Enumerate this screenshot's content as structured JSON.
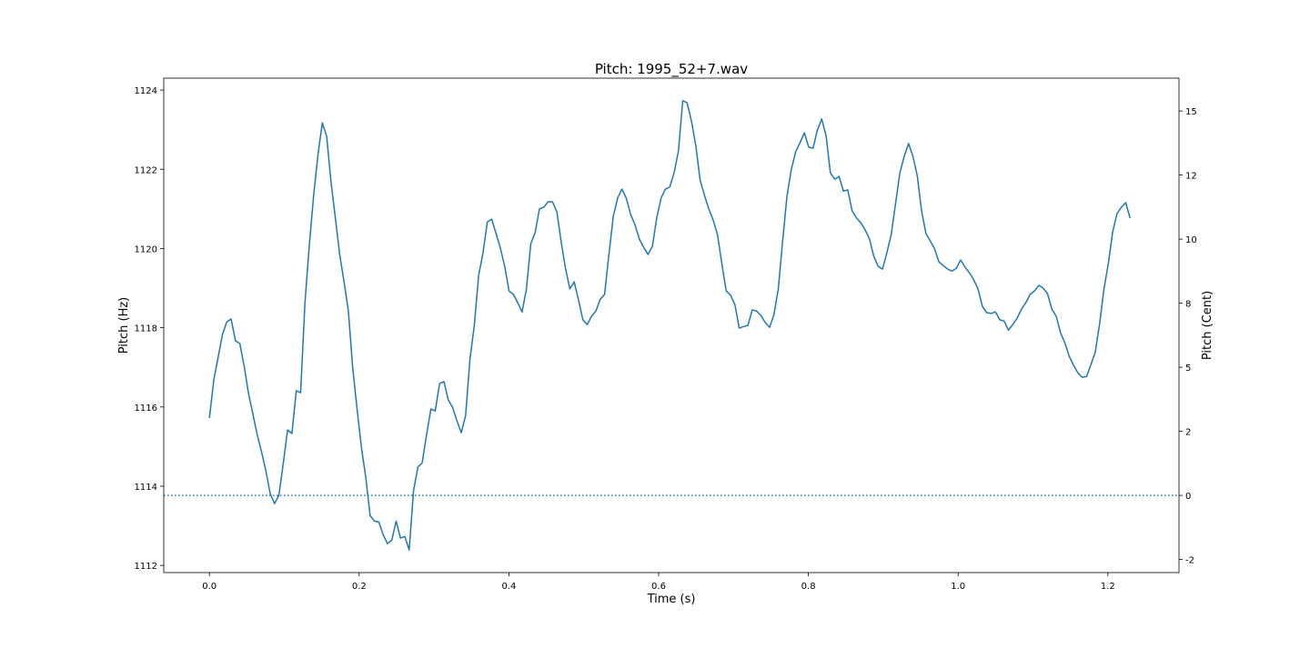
{
  "chart_data": {
    "type": "line",
    "title": "Pitch: 1995_52+7.wav",
    "x_label": "Time (s)",
    "y_label": "Pitch (Hz)",
    "y2_label": "Pitch (Cent)",
    "color": "#1f77b4",
    "xlim": [
      -0.061,
      1.295
    ],
    "ylim": [
      1111.82,
      1124.3
    ],
    "y2lim": [
      -3.01,
      16.28
    ],
    "xticks": [
      {
        "value": 0,
        "label": "0.0"
      },
      0.2,
      0.4,
      0.6,
      0.8,
      {
        "value": 1,
        "label": "1.0"
      },
      1.2
    ],
    "yticks": [
      1112,
      1114,
      1116,
      1118,
      1120,
      1122,
      1124
    ],
    "y2ticks": [
      {
        "value": -2.5,
        "label": "-2"
      },
      0,
      {
        "value": 2.5,
        "label": "2"
      },
      5,
      {
        "value": 7.5,
        "label": "8"
      },
      10,
      {
        "value": 12.5,
        "label": "12"
      },
      15
    ],
    "reference_line": {
      "axis": "y2",
      "value": 0,
      "style": "dotted"
    },
    "x": [
      0,
      0.0058,
      0.0116,
      0.0174,
      0.0232,
      0.029,
      0.0348,
      0.0406,
      0.0464,
      0.0522,
      0.058,
      0.0638,
      0.0696,
      0.0754,
      0.0812,
      0.087,
      0.0928,
      0.0986,
      0.1044,
      0.1102,
      0.116,
      0.1218,
      0.1276,
      0.1334,
      0.1392,
      0.145,
      0.1508,
      0.1566,
      0.1624,
      0.1682,
      0.174,
      0.1798,
      0.1856,
      0.1914,
      0.1972,
      0.203,
      0.2088,
      0.2146,
      0.2204,
      0.2262,
      0.232,
      0.2378,
      0.2436,
      0.2494,
      0.2552,
      0.261,
      0.2668,
      0.2726,
      0.2784,
      0.2842,
      0.29,
      0.2958,
      0.3016,
      0.3074,
      0.3132,
      0.319,
      0.3248,
      0.3306,
      0.3364,
      0.3422,
      0.348,
      0.3538,
      0.3596,
      0.3654,
      0.3712,
      0.377,
      0.3828,
      0.3886,
      0.3944,
      0.4002,
      0.406,
      0.4118,
      0.4176,
      0.4234,
      0.4292,
      0.435,
      0.4408,
      0.4466,
      0.4524,
      0.4582,
      0.464,
      0.4698,
      0.4756,
      0.4814,
      0.4872,
      0.493,
      0.4988,
      0.5046,
      0.5104,
      0.5162,
      0.522,
      0.5278,
      0.5336,
      0.5394,
      0.5452,
      0.551,
      0.5568,
      0.5626,
      0.5684,
      0.5742,
      0.58,
      0.5858,
      0.5916,
      0.5974,
      0.6032,
      0.609,
      0.6148,
      0.6206,
      0.6264,
      0.6322,
      0.638,
      0.6438,
      0.6496,
      0.6554,
      0.6612,
      0.667,
      0.6728,
      0.6786,
      0.6844,
      0.6902,
      0.696,
      0.7018,
      0.7076,
      0.7134,
      0.7192,
      0.725,
      0.7308,
      0.7366,
      0.7424,
      0.7482,
      0.754,
      0.7598,
      0.7656,
      0.7714,
      0.7772,
      0.783,
      0.7888,
      0.7946,
      0.8004,
      0.8062,
      0.812,
      0.8178,
      0.8236,
      0.8294,
      0.8352,
      0.841,
      0.8468,
      0.8526,
      0.8584,
      0.8642,
      0.87,
      0.8758,
      0.8816,
      0.8874,
      0.8932,
      0.899,
      0.9048,
      0.9106,
      0.9164,
      0.9222,
      0.928,
      0.9338,
      0.9396,
      0.9454,
      0.9512,
      0.957,
      0.9628,
      0.9686,
      0.9744,
      0.9802,
      0.986,
      0.9918,
      0.9976,
      1.0034,
      1.0092,
      1.015,
      1.0208,
      1.0266,
      1.0324,
      1.0382,
      1.044,
      1.0498,
      1.0556,
      1.0614,
      1.0672,
      1.073,
      1.0788,
      1.0846,
      1.0904,
      1.0962,
      1.102,
      1.1078,
      1.1136,
      1.1194,
      1.1252,
      1.131,
      1.1368,
      1.1426,
      1.1484,
      1.1542,
      1.16,
      1.1658,
      1.1716,
      1.1774,
      1.1832,
      1.189,
      1.1948,
      1.2006,
      1.2064,
      1.2122,
      1.218,
      1.2238,
      1.2296
    ],
    "values": [
      1115.72,
      1116.68,
      1117.25,
      1117.83,
      1118.15,
      1118.22,
      1117.67,
      1117.6,
      1117.03,
      1116.34,
      1115.83,
      1115.3,
      1114.87,
      1114.39,
      1113.81,
      1113.56,
      1113.77,
      1114.57,
      1115.42,
      1115.33,
      1116.41,
      1116.36,
      1118.63,
      1120.08,
      1121.34,
      1122.37,
      1123.17,
      1122.83,
      1121.68,
      1120.77,
      1119.85,
      1119.16,
      1118.42,
      1116.98,
      1115.95,
      1114.98,
      1114.23,
      1113.26,
      1113.12,
      1113.1,
      1112.78,
      1112.55,
      1112.64,
      1113.12,
      1112.69,
      1112.73,
      1112.39,
      1113.88,
      1114.48,
      1114.59,
      1115.3,
      1115.95,
      1115.9,
      1116.59,
      1116.64,
      1116.18,
      1115.99,
      1115.65,
      1115.35,
      1115.79,
      1117.21,
      1118.06,
      1119.32,
      1119.89,
      1120.67,
      1120.74,
      1120.38,
      1120.01,
      1119.55,
      1118.93,
      1118.84,
      1118.63,
      1118.4,
      1118.98,
      1120.12,
      1120.4,
      1121.0,
      1121.04,
      1121.18,
      1121.18,
      1120.93,
      1120.17,
      1119.5,
      1118.98,
      1119.16,
      1118.7,
      1118.2,
      1118.08,
      1118.29,
      1118.42,
      1118.72,
      1118.84,
      1119.85,
      1120.81,
      1121.27,
      1121.5,
      1121.27,
      1120.86,
      1120.6,
      1120.24,
      1120.03,
      1119.85,
      1120.05,
      1120.77,
      1121.27,
      1121.5,
      1121.55,
      1121.91,
      1122.46,
      1123.73,
      1123.68,
      1123.22,
      1122.6,
      1121.73,
      1121.34,
      1121.0,
      1120.72,
      1120.35,
      1119.62,
      1118.93,
      1118.82,
      1118.59,
      1117.99,
      1118.03,
      1118.06,
      1118.45,
      1118.42,
      1118.31,
      1118.13,
      1118.01,
      1118.33,
      1118.98,
      1120.19,
      1121.32,
      1122.0,
      1122.44,
      1122.67,
      1122.92,
      1122.56,
      1122.53,
      1122.99,
      1123.27,
      1122.85,
      1121.91,
      1121.75,
      1121.82,
      1121.45,
      1121.48,
      1120.95,
      1120.77,
      1120.65,
      1120.47,
      1120.24,
      1119.8,
      1119.55,
      1119.48,
      1119.89,
      1120.35,
      1121.13,
      1121.91,
      1122.33,
      1122.65,
      1122.33,
      1121.84,
      1120.95,
      1120.38,
      1120.19,
      1119.99,
      1119.66,
      1119.57,
      1119.48,
      1119.43,
      1119.5,
      1119.71,
      1119.53,
      1119.39,
      1119.21,
      1118.98,
      1118.54,
      1118.38,
      1118.36,
      1118.4,
      1118.2,
      1118.17,
      1117.94,
      1118.08,
      1118.24,
      1118.47,
      1118.63,
      1118.84,
      1118.93,
      1119.07,
      1119.0,
      1118.86,
      1118.47,
      1118.29,
      1117.87,
      1117.62,
      1117.28,
      1117.05,
      1116.86,
      1116.75,
      1116.77,
      1117.07,
      1117.39,
      1118.1,
      1118.98,
      1119.62,
      1120.42,
      1120.88,
      1121.04,
      1121.16,
      1120.77
    ]
  }
}
